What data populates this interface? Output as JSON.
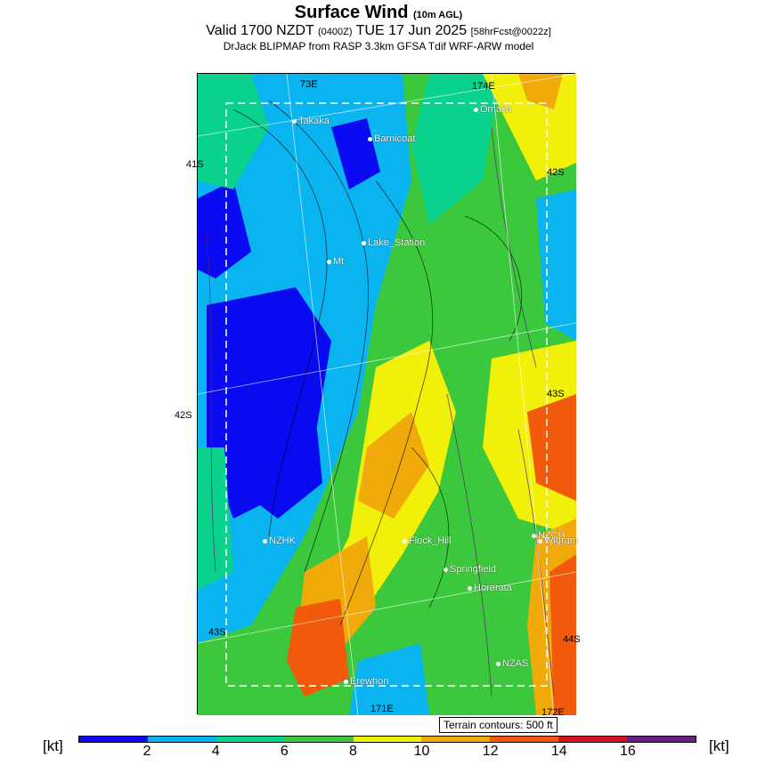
{
  "header": {
    "title": "Surface Wind",
    "title_small": "(10m AGL)",
    "line2_a": "Valid 1700 NZDT",
    "line2_b": "(0400Z)",
    "line2_c": "TUE 17 Jun 2025",
    "line2_d": "[58hrFcst@0022z]",
    "line3": "DrJack BLIPMAP from RASP 3.3km GFSA Tdif WRF-ARW model"
  },
  "map": {
    "grid_labels": [
      "73E",
      "174E",
      "41S",
      "42S",
      "42S",
      "43S",
      "43S",
      "44S",
      "171E",
      "172E"
    ],
    "places": [
      "Omaka",
      "Takaka",
      "Barnicoat",
      "Lake_Station",
      "Mt",
      "NZHK",
      "Flock_Hill",
      "NZCH",
      "Wigram",
      "Springfield",
      "Hororata",
      "NZAS",
      "Erewhon"
    ]
  },
  "terrain_note": "Terrain contours: 500 ft",
  "colorbar": {
    "unit": "[kt]",
    "ticks": [
      "2",
      "4",
      "6",
      "8",
      "10",
      "12",
      "14",
      "16"
    ],
    "colors": [
      "#0a0af0",
      "#0ab4f0",
      "#0ad28c",
      "#3cc83c",
      "#f0f00a",
      "#f0aa0a",
      "#f05a0a",
      "#d2141e",
      "#6a1e82"
    ]
  },
  "legend_colors": {
    "lt_blue": "#0ab4f0",
    "blue": "#0a0af0",
    "teal": "#0ad28c",
    "green": "#3cc83c",
    "yellow": "#f0f00a",
    "orange": "#f0aa0a",
    "red": "#f05a0a"
  }
}
